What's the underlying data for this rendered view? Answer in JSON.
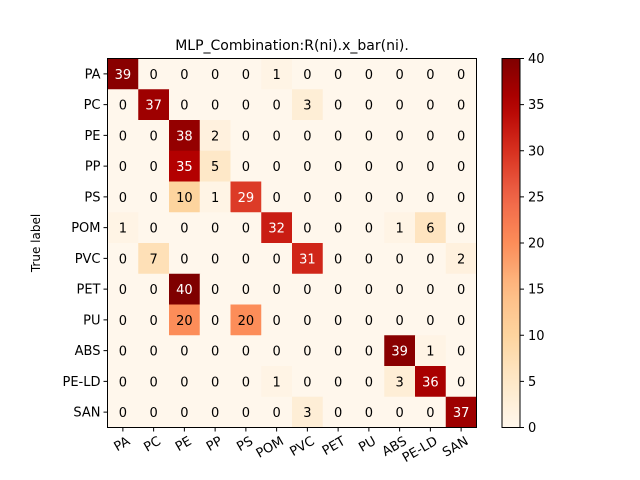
{
  "chart_data": {
    "type": "heatmap",
    "title": "MLP_Combination:R(ni).x_bar(ni).",
    "ylabel": "True label",
    "xlabel": "",
    "row_labels": [
      "PA",
      "PC",
      "PE",
      "PP",
      "PS",
      "POM",
      "PVC",
      "PET",
      "PU",
      "ABS",
      "PE-LD",
      "SAN"
    ],
    "col_labels": [
      "PA",
      "PC",
      "PE",
      "PP",
      "PS",
      "POM",
      "PVC",
      "PET",
      "PU",
      "ABS",
      "PE-LD",
      "SAN"
    ],
    "values": [
      [
        39,
        0,
        0,
        0,
        0,
        1,
        0,
        0,
        0,
        0,
        0,
        0
      ],
      [
        0,
        37,
        0,
        0,
        0,
        0,
        3,
        0,
        0,
        0,
        0,
        0
      ],
      [
        0,
        0,
        38,
        2,
        0,
        0,
        0,
        0,
        0,
        0,
        0,
        0
      ],
      [
        0,
        0,
        35,
        5,
        0,
        0,
        0,
        0,
        0,
        0,
        0,
        0
      ],
      [
        0,
        0,
        10,
        1,
        29,
        0,
        0,
        0,
        0,
        0,
        0,
        0
      ],
      [
        1,
        0,
        0,
        0,
        0,
        32,
        0,
        0,
        0,
        1,
        6,
        0
      ],
      [
        0,
        7,
        0,
        0,
        0,
        0,
        31,
        0,
        0,
        0,
        0,
        2
      ],
      [
        0,
        0,
        40,
        0,
        0,
        0,
        0,
        0,
        0,
        0,
        0,
        0
      ],
      [
        0,
        0,
        20,
        0,
        20,
        0,
        0,
        0,
        0,
        0,
        0,
        0
      ],
      [
        0,
        0,
        0,
        0,
        0,
        0,
        0,
        0,
        0,
        39,
        1,
        0
      ],
      [
        0,
        0,
        0,
        0,
        0,
        1,
        0,
        0,
        0,
        3,
        36,
        0
      ],
      [
        0,
        0,
        0,
        0,
        0,
        0,
        3,
        0,
        0,
        0,
        0,
        37
      ]
    ],
    "colormap": "OrRd",
    "vmin": 0,
    "vmax": 40,
    "colorbar_ticks": [
      0,
      5,
      10,
      15,
      20,
      25,
      30,
      35,
      40
    ]
  }
}
